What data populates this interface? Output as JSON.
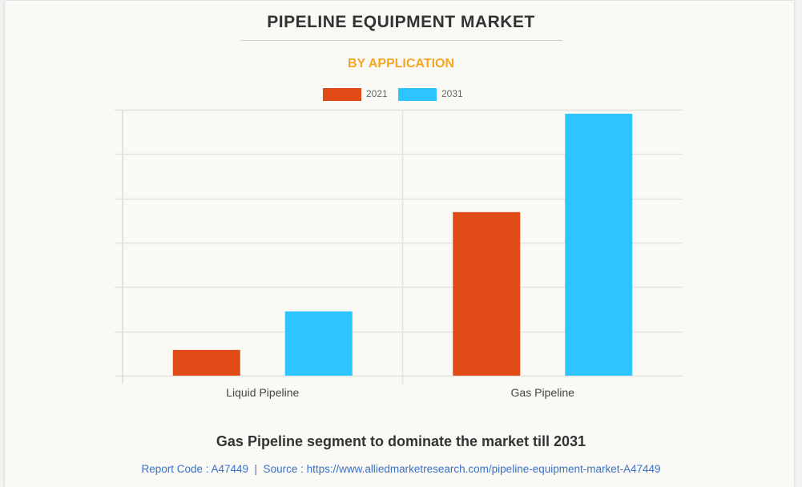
{
  "header": {
    "title": "PIPELINE EQUIPMENT MARKET",
    "subtitle": "BY APPLICATION"
  },
  "legend": [
    {
      "label": "2021",
      "color": "#e04a16"
    },
    {
      "label": "2031",
      "color": "#2ec4fd"
    }
  ],
  "chart_data": {
    "type": "bar",
    "title": "PIPELINE EQUIPMENT MARKET",
    "subtitle": "BY APPLICATION",
    "categories": [
      "Liquid Pipeline",
      "Gas Pipeline"
    ],
    "series": [
      {
        "name": "2021",
        "color": "#e04a16",
        "values": [
          0.58,
          3.69
        ]
      },
      {
        "name": "2031",
        "color": "#2ec4fd",
        "values": [
          1.45,
          5.91
        ]
      }
    ],
    "xlabel": "",
    "ylabel": "",
    "ylim": [
      0,
      6
    ],
    "y_gridlines": [
      0,
      1,
      2,
      3,
      4,
      5,
      6
    ],
    "y_tick_labels_shown": false,
    "grid": true,
    "legend_position": "top-center"
  },
  "footer": {
    "headline": "Gas Pipeline segment to dominate the market till 2031",
    "source": "Report Code : A47449  |  Source : https://www.alliedmarketresearch.com/pipeline-equipment-market-A47449"
  }
}
